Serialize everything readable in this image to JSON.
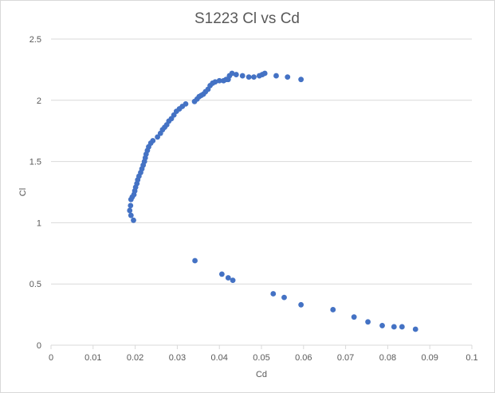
{
  "chart_data": {
    "type": "scatter",
    "title": "S1223 Cl vs Cd",
    "xlabel": "Cd",
    "ylabel": "Cl",
    "xlim": [
      0,
      0.1
    ],
    "ylim": [
      0,
      2.5
    ],
    "x_ticks": [
      "0",
      "0.01",
      "0.02",
      "0.03",
      "0.04",
      "0.05",
      "0.06",
      "0.07",
      "0.08",
      "0.09",
      "0.1"
    ],
    "y_ticks": [
      "0",
      "0.5",
      "1",
      "1.5",
      "2",
      "2.5"
    ],
    "grid": "horizontal",
    "legend": "none",
    "marker_color": "#4472C4",
    "grid_color": "#d9d9d9",
    "series": [
      {
        "points": [
          [
            0.0196,
            1.02
          ],
          [
            0.019,
            1.06
          ],
          [
            0.0187,
            1.1
          ],
          [
            0.0189,
            1.14
          ],
          [
            0.019,
            1.19
          ],
          [
            0.0193,
            1.21
          ],
          [
            0.0197,
            1.23
          ],
          [
            0.0199,
            1.26
          ],
          [
            0.0201,
            1.29
          ],
          [
            0.0204,
            1.32
          ],
          [
            0.0206,
            1.35
          ],
          [
            0.0209,
            1.38
          ],
          [
            0.0213,
            1.41
          ],
          [
            0.0216,
            1.44
          ],
          [
            0.0219,
            1.47
          ],
          [
            0.0222,
            1.5
          ],
          [
            0.0224,
            1.53
          ],
          [
            0.0226,
            1.56
          ],
          [
            0.0229,
            1.59
          ],
          [
            0.0232,
            1.62
          ],
          [
            0.0237,
            1.65
          ],
          [
            0.0242,
            1.67
          ],
          [
            0.0253,
            1.7
          ],
          [
            0.026,
            1.73
          ],
          [
            0.0265,
            1.76
          ],
          [
            0.027,
            1.78
          ],
          [
            0.0275,
            1.8
          ],
          [
            0.028,
            1.83
          ],
          [
            0.0286,
            1.85
          ],
          [
            0.0292,
            1.88
          ],
          [
            0.0298,
            1.91
          ],
          [
            0.0305,
            1.93
          ],
          [
            0.0312,
            1.95
          ],
          [
            0.032,
            1.97
          ],
          [
            0.0341,
            1.99
          ],
          [
            0.0347,
            2.01
          ],
          [
            0.0352,
            2.03
          ],
          [
            0.0357,
            2.04
          ],
          [
            0.0362,
            2.05
          ],
          [
            0.0367,
            2.07
          ],
          [
            0.0373,
            2.09
          ],
          [
            0.0378,
            2.12
          ],
          [
            0.0384,
            2.14
          ],
          [
            0.039,
            2.15
          ],
          [
            0.04,
            2.16
          ],
          [
            0.041,
            2.16
          ],
          [
            0.0416,
            2.17
          ],
          [
            0.0421,
            2.17
          ],
          [
            0.0424,
            2.2
          ],
          [
            0.043,
            2.22
          ],
          [
            0.044,
            2.21
          ],
          [
            0.0455,
            2.2
          ],
          [
            0.047,
            2.19
          ],
          [
            0.0482,
            2.19
          ],
          [
            0.0495,
            2.2
          ],
          [
            0.0502,
            2.21
          ],
          [
            0.0508,
            2.22
          ],
          [
            0.0535,
            2.2
          ],
          [
            0.0562,
            2.19
          ],
          [
            0.0594,
            2.17
          ],
          [
            0.0342,
            0.69
          ],
          [
            0.0406,
            0.58
          ],
          [
            0.0421,
            0.55
          ],
          [
            0.0432,
            0.53
          ],
          [
            0.0528,
            0.42
          ],
          [
            0.0554,
            0.39
          ],
          [
            0.0594,
            0.33
          ],
          [
            0.067,
            0.29
          ],
          [
            0.072,
            0.23
          ],
          [
            0.0753,
            0.19
          ],
          [
            0.0787,
            0.16
          ],
          [
            0.0815,
            0.15
          ],
          [
            0.0834,
            0.15
          ],
          [
            0.0866,
            0.13
          ]
        ]
      }
    ]
  }
}
